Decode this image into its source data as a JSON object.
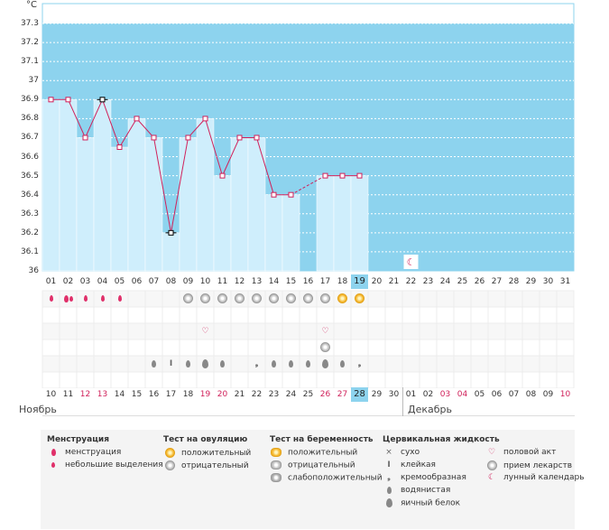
{
  "chart_data": {
    "type": "bar",
    "unit": "°C",
    "ylim": [
      36,
      37.4
    ],
    "yticks": [
      "37.3",
      "37.2",
      "37.1",
      "37",
      "36.9",
      "36.8",
      "36.7",
      "36.6",
      "36.5",
      "36.4",
      "36.3",
      "36.2",
      "36.1",
      "36"
    ],
    "cycle_days": [
      "01",
      "02",
      "03",
      "04",
      "05",
      "06",
      "07",
      "08",
      "09",
      "10",
      "11",
      "12",
      "13",
      "14",
      "15",
      "16",
      "17",
      "18",
      "19",
      "20",
      "21",
      "22",
      "23",
      "24",
      "25",
      "26",
      "27",
      "28",
      "29",
      "30",
      "31"
    ],
    "temperatures": [
      36.9,
      36.9,
      36.7,
      36.9,
      36.65,
      36.8,
      36.7,
      36.2,
      36.7,
      36.8,
      36.5,
      36.7,
      36.7,
      36.4,
      36.4,
      null,
      36.5,
      36.5,
      36.5
    ],
    "current_day": "19",
    "calendar_dates": [
      "10",
      "11",
      "12",
      "13",
      "14",
      "15",
      "16",
      "17",
      "18",
      "19",
      "20",
      "21",
      "22",
      "23",
      "24",
      "25",
      "26",
      "27",
      "28",
      "29",
      "30",
      "01",
      "02",
      "03",
      "04",
      "05",
      "06",
      "07",
      "08",
      "09",
      "10"
    ],
    "weekend_dates_idx": [
      2,
      3,
      9,
      10,
      16,
      17,
      23,
      24,
      30
    ],
    "today_date": "28",
    "months": {
      "first": "Ноябрь",
      "second": "Декабрь"
    }
  },
  "legend": {
    "menstruation": {
      "title": "Менструация",
      "items": [
        "менструация",
        "небольшие выделения"
      ]
    },
    "ovulation_test": {
      "title": "Тест на овуляцию",
      "items": [
        "положительный",
        "отрицательный"
      ]
    },
    "pregnancy_test": {
      "title": "Тест на беременность",
      "items": [
        "положительный",
        "отрицательный",
        "слабоположительный"
      ]
    },
    "cervical_fluid": {
      "title": "Цервикальная жидкость",
      "items": [
        "сухо",
        "клейкая",
        "кремообразная",
        "водянистая",
        "яичный белок"
      ]
    },
    "other": {
      "items": [
        "половой акт",
        "прием лекарств",
        "лунный календарь"
      ]
    }
  },
  "colors": {
    "sky": "#8dd3ee",
    "bar": "#cfeefc",
    "line": "#d0205a",
    "weekend": "#d0205a"
  }
}
